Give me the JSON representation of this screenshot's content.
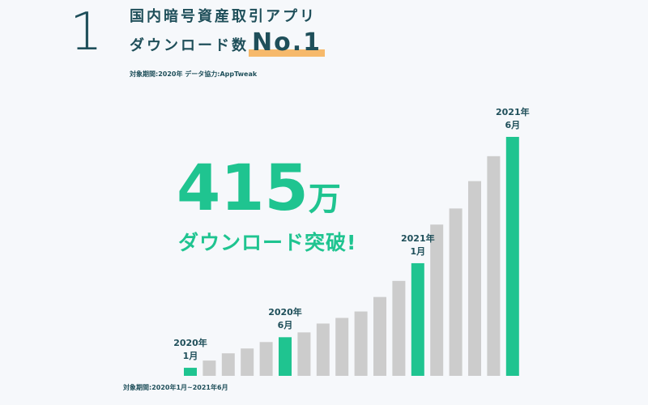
{
  "header": {
    "rank_number": "1",
    "line1": "国内暗号資産取引アプリ",
    "line2_prefix": "ダウンロード数",
    "line2_rank": "No.1",
    "source_note": "対象期間:2020年 データ協力:AppTweak"
  },
  "headline": {
    "number": "415",
    "unit": "万",
    "subtitle": "ダウンロード突破!"
  },
  "colors": {
    "highlight": "#1fc490",
    "regular": "#cccccc",
    "text": "#1f4f5a",
    "underline": "#f6b96b"
  },
  "chart_data": {
    "type": "bar",
    "categories": [
      "2020-01",
      "2020-02",
      "2020-03",
      "2020-04",
      "2020-05",
      "2020-06",
      "2020-07",
      "2020-08",
      "2020-09",
      "2020-10",
      "2020-11",
      "2020-12",
      "2021-01",
      "2021-02",
      "2021-03",
      "2021-04",
      "2021-05",
      "2021-06"
    ],
    "values": [
      1,
      1.9,
      2.8,
      3.4,
      4.2,
      4.8,
      5.4,
      6.5,
      7.2,
      8.0,
      9.8,
      11.8,
      14.0,
      18.8,
      20.8,
      24.2,
      27.3,
      29.7
    ],
    "highlighted": [
      0,
      5,
      12,
      17
    ],
    "ylim": [
      0,
      30
    ],
    "annotations": [
      {
        "index": 0,
        "line1": "2020年",
        "line2": "1月"
      },
      {
        "index": 5,
        "line1": "2020年",
        "line2": "6月"
      },
      {
        "index": 12,
        "line1": "2021年",
        "line2": "1月"
      },
      {
        "index": 17,
        "line1": "2021年",
        "line2": "6月"
      }
    ],
    "period_note": "対象期間:2020年1月~2021年6月"
  }
}
